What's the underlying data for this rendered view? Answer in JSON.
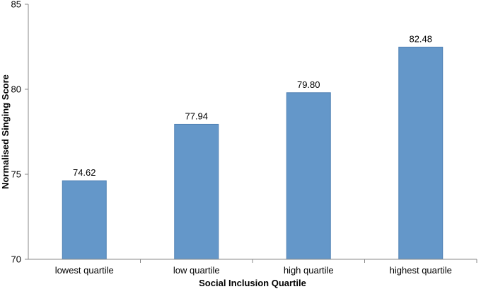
{
  "chart_data": {
    "type": "bar",
    "title": "",
    "xlabel": "Social Inclusion Quartile",
    "ylabel": "Normalised Singing Score",
    "categories": [
      "lowest quartile",
      "low quartile",
      "high quartile",
      "highest quartile"
    ],
    "values": [
      74.62,
      77.94,
      79.8,
      82.48
    ],
    "value_labels": [
      "74.62",
      "77.94",
      "79.80",
      "82.48"
    ],
    "ylim": [
      70,
      85
    ],
    "yticks": [
      70,
      75,
      80,
      85
    ],
    "ytick_labels": [
      "70",
      "75",
      "80",
      "85"
    ],
    "grid": false,
    "legend": "none",
    "colors": {
      "bar_fill": "#6497c9",
      "bar_stroke": "#4f80b4",
      "axis": "#888888"
    }
  }
}
